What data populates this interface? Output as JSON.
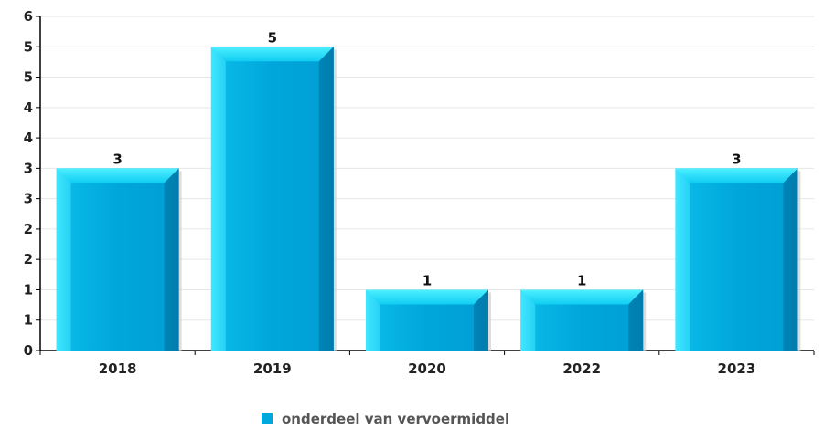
{
  "chart_data": {
    "type": "bar",
    "categories": [
      "2018",
      "2019",
      "2020",
      "2022",
      "2023"
    ],
    "series": [
      {
        "name": "onderdeel van vervoermiddel",
        "values": [
          3,
          5,
          1,
          1,
          3
        ]
      }
    ],
    "data_labels": [
      "3",
      "5",
      "1",
      "1",
      "3"
    ],
    "y_tick_labels": [
      "0",
      "1",
      "1",
      "2",
      "2",
      "3",
      "3",
      "4",
      "4",
      "5",
      "5",
      "6"
    ],
    "ylim": [
      0,
      5.5
    ],
    "grid": true,
    "legend_position": "bottom-center",
    "colors": {
      "bar": "#00a8dc",
      "bar_top": "#1fe3ff",
      "bar_dark": "#007fb0",
      "grid": "#e6e6e6",
      "axis": "#000000",
      "legend": "#00a8dc"
    }
  }
}
